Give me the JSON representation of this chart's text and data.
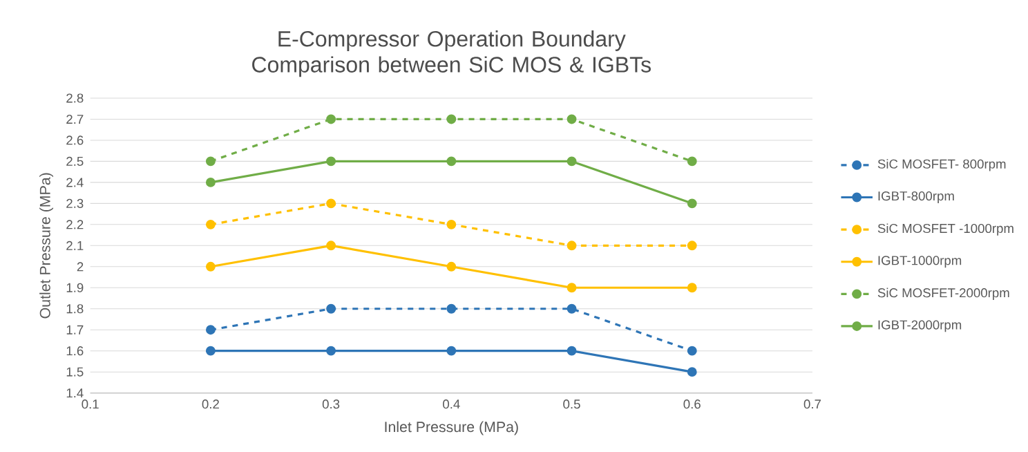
{
  "chart_data": {
    "type": "line",
    "title": "E-Compressor Operation Boundary Comparison between SiC MOS & IGBTs",
    "xlabel": "Inlet Pressure (MPa)",
    "ylabel": "Outlet Pressure (MPa)",
    "x": [
      0.2,
      0.3,
      0.4,
      0.5,
      0.6
    ],
    "xlim": [
      0.1,
      0.7
    ],
    "xticks": [
      0.1,
      0.2,
      0.3,
      0.4,
      0.5,
      0.6,
      0.7
    ],
    "ylim": [
      1.4,
      2.8
    ],
    "yticks": [
      1.4,
      1.5,
      1.6,
      1.7,
      1.8,
      1.9,
      2,
      2.1,
      2.2,
      2.3,
      2.4,
      2.5,
      2.6,
      2.7,
      2.8
    ],
    "grid": "y",
    "legend": "right",
    "marker": "circle",
    "series": [
      {
        "name": "SiC MOSFET- 800rpm",
        "color": "#2e75b6",
        "line_style": "dashed",
        "values": [
          1.7,
          1.8,
          1.8,
          1.8,
          1.6
        ]
      },
      {
        "name": "IGBT-800rpm",
        "color": "#2e75b6",
        "line_style": "solid",
        "values": [
          1.6,
          1.6,
          1.6,
          1.6,
          1.5
        ]
      },
      {
        "name": "SiC MOSFET -1000rpm",
        "color": "#ffc000",
        "line_style": "dashed",
        "values": [
          2.2,
          2.3,
          2.2,
          2.1,
          2.1
        ]
      },
      {
        "name": "IGBT-1000rpm",
        "color": "#ffc000",
        "line_style": "solid",
        "values": [
          2.0,
          2.1,
          2.0,
          1.9,
          1.9
        ]
      },
      {
        "name": "SiC MOSFET-2000rpm",
        "color": "#70ad47",
        "line_style": "dashed",
        "values": [
          2.5,
          2.7,
          2.7,
          2.7,
          2.5
        ]
      },
      {
        "name": "IGBT-2000rpm",
        "color": "#70ad47",
        "line_style": "solid",
        "values": [
          2.4,
          2.5,
          2.5,
          2.5,
          2.3
        ]
      }
    ]
  }
}
